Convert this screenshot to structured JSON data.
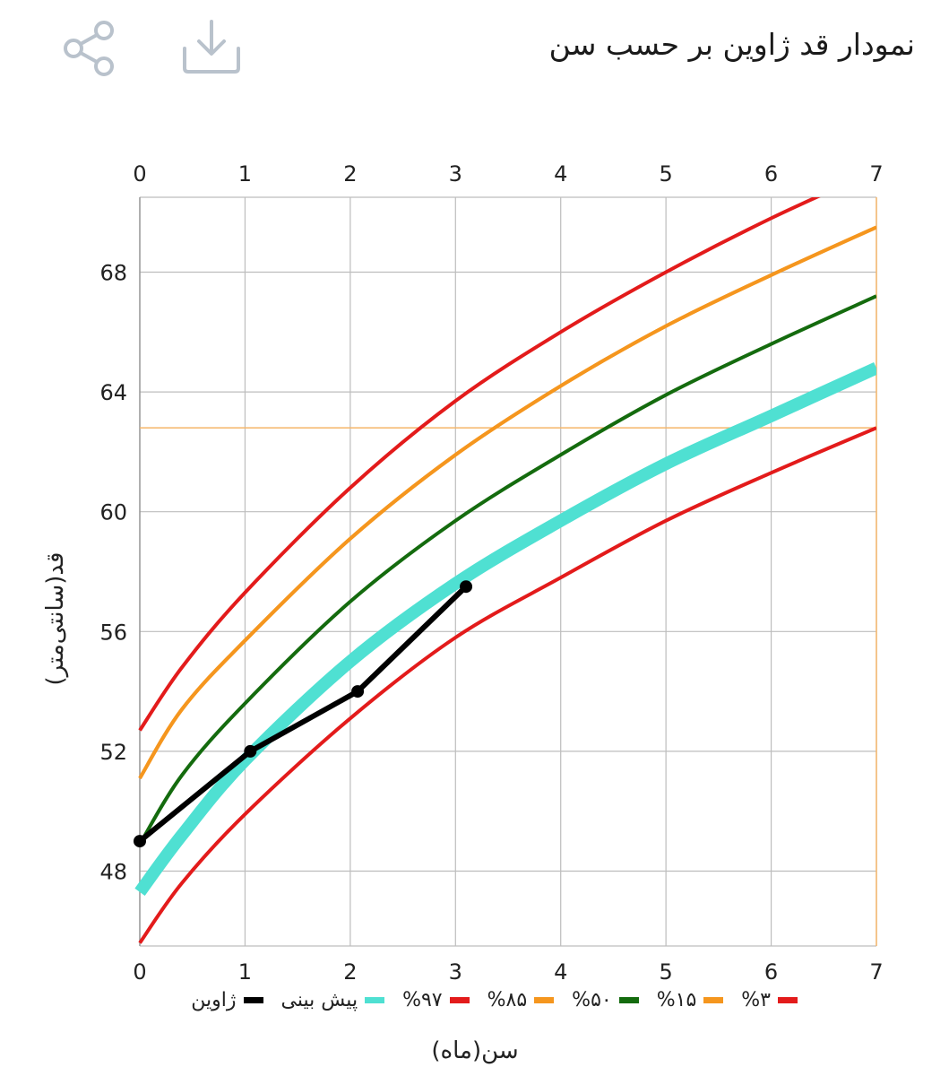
{
  "header": {
    "title": "نمودار قد ژاوین بر حسب سن",
    "share_icon": "share-icon",
    "download_icon": "download-icon"
  },
  "chart_data": {
    "type": "line",
    "xlabel": "سن(ماه)",
    "ylabel": "قد(سانتی‌متر)",
    "xlim": [
      0,
      7
    ],
    "ylim": [
      45.5,
      70.5
    ],
    "x_ticks": [
      0,
      1,
      2,
      3,
      4,
      5,
      6,
      7
    ],
    "y_ticks": [
      48,
      52,
      56,
      60,
      64,
      68
    ],
    "grid": true,
    "legend_position": "bottom",
    "reference_line_y": 62.8,
    "series": [
      {
        "name": "%۳",
        "color": "#e31b1b",
        "width": 4,
        "x": [
          0,
          0.4,
          1,
          2,
          3,
          4,
          5,
          6,
          7
        ],
        "y": [
          45.6,
          47.6,
          49.9,
          53.1,
          55.8,
          57.8,
          59.7,
          61.3,
          62.8
        ]
      },
      {
        "name": "%۱۵",
        "color": "#f5961e",
        "width": 4,
        "x": [
          0,
          0.4,
          1,
          2,
          3,
          4,
          5,
          6,
          7
        ],
        "y": [
          51.1,
          53.4,
          55.7,
          59.1,
          61.9,
          64.2,
          66.2,
          67.9,
          69.5
        ]
      },
      {
        "name": "%۵۰",
        "color": "#146b0e",
        "width": 4,
        "x": [
          0,
          0.4,
          1,
          2,
          3,
          4,
          5,
          6,
          7
        ],
        "y": [
          48.9,
          51.2,
          53.6,
          57.0,
          59.7,
          61.9,
          63.9,
          65.6,
          67.2
        ]
      },
      {
        "name": "%۸۵",
        "color": "#f5961e",
        "width": 4,
        "x": [
          0,
          0.4,
          1,
          2,
          3,
          4,
          5,
          6,
          7
        ],
        "y": [
          51.1,
          53.4,
          55.7,
          59.1,
          61.9,
          64.2,
          66.2,
          67.9,
          69.5
        ]
      },
      {
        "name": "%۹۷",
        "color": "#e31b1b",
        "width": 4,
        "x": [
          0,
          0.4,
          1,
          2,
          3,
          4,
          5,
          6,
          7
        ],
        "y": [
          52.7,
          54.8,
          57.3,
          60.8,
          63.7,
          66.0,
          68.0,
          69.8,
          71.4
        ]
      },
      {
        "name": "پیش بینی",
        "color": "#4fe0d2",
        "width": 14,
        "x": [
          0,
          0.4,
          1,
          2,
          3,
          4,
          5,
          6,
          7
        ],
        "y": [
          47.3,
          49.2,
          51.7,
          55.0,
          57.6,
          59.7,
          61.6,
          63.2,
          64.8
        ]
      },
      {
        "name": "ژاوین",
        "color": "#000000",
        "width": 6,
        "markers": true,
        "x": [
          0,
          1.05,
          2.07,
          3.1
        ],
        "y": [
          49.0,
          52.0,
          54.0,
          57.5
        ]
      }
    ]
  }
}
